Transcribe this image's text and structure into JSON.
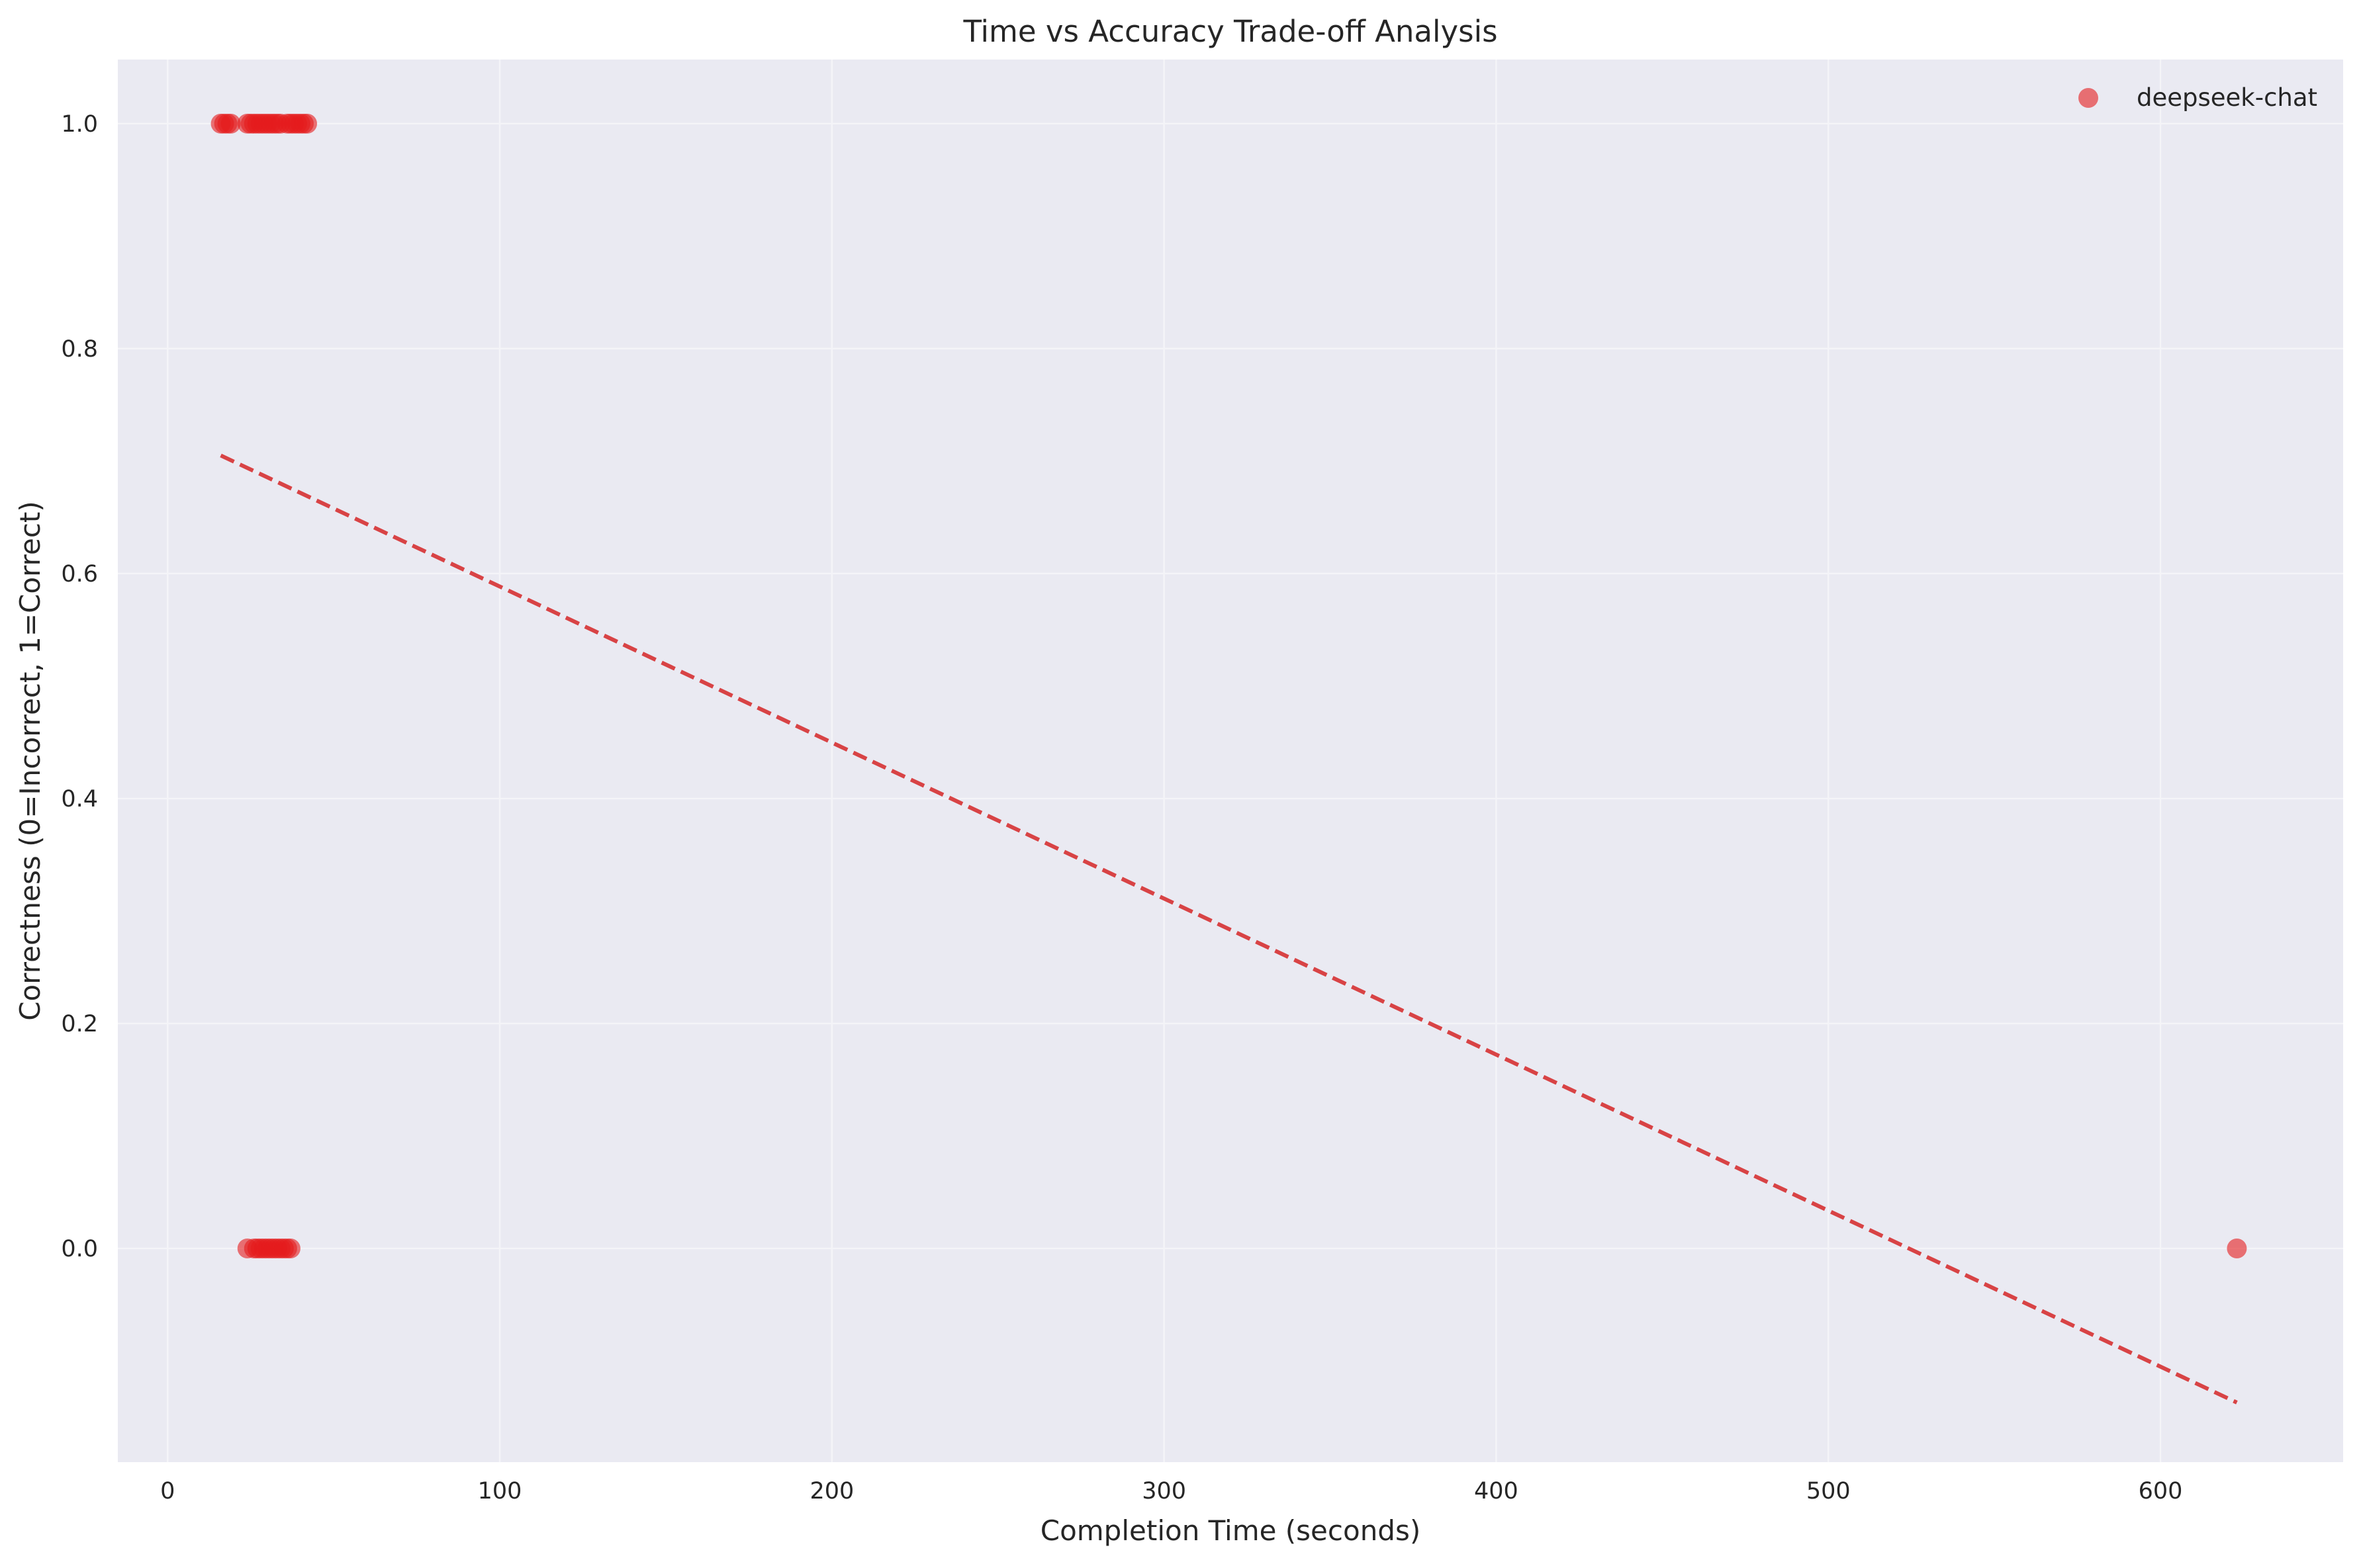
{
  "chart_data": {
    "type": "scatter",
    "title": "Time vs Accuracy Trade-off Analysis",
    "xlabel": "Completion Time (seconds)",
    "ylabel": "Correctness (0=Incorrect, 1=Correct)",
    "xlim": [
      -15,
      655
    ],
    "ylim": [
      -0.19,
      1.057
    ],
    "xticks": [
      {
        "value": 0,
        "label": "0"
      },
      {
        "value": 100,
        "label": "100"
      },
      {
        "value": 200,
        "label": "200"
      },
      {
        "value": 300,
        "label": "300"
      },
      {
        "value": 400,
        "label": "400"
      },
      {
        "value": 500,
        "label": "500"
      },
      {
        "value": 600,
        "label": "600"
      }
    ],
    "yticks": [
      {
        "value": 0.0,
        "label": "0.0"
      },
      {
        "value": 0.2,
        "label": "0.2"
      },
      {
        "value": 0.4,
        "label": "0.4"
      },
      {
        "value": 0.6,
        "label": "0.6"
      },
      {
        "value": 0.8,
        "label": "0.8"
      },
      {
        "value": 1.0,
        "label": "1.0"
      }
    ],
    "grid": true,
    "legend_position": "top-right",
    "background_color": "#eaeaf2",
    "grid_color": "#f4f4f8",
    "series": [
      {
        "name": "deepseek-chat",
        "color": "#e41a1c",
        "points": [
          {
            "x": 16,
            "y": 1
          },
          {
            "x": 17,
            "y": 1
          },
          {
            "x": 18,
            "y": 1
          },
          {
            "x": 19,
            "y": 1
          },
          {
            "x": 24,
            "y": 1
          },
          {
            "x": 25,
            "y": 1
          },
          {
            "x": 26,
            "y": 1
          },
          {
            "x": 27,
            "y": 1
          },
          {
            "x": 28,
            "y": 1
          },
          {
            "x": 29,
            "y": 1
          },
          {
            "x": 30,
            "y": 1
          },
          {
            "x": 31,
            "y": 1
          },
          {
            "x": 32,
            "y": 1
          },
          {
            "x": 33,
            "y": 1
          },
          {
            "x": 34,
            "y": 1
          },
          {
            "x": 36,
            "y": 1
          },
          {
            "x": 37,
            "y": 1
          },
          {
            "x": 38,
            "y": 1
          },
          {
            "x": 39,
            "y": 1
          },
          {
            "x": 40,
            "y": 1
          },
          {
            "x": 41,
            "y": 1
          },
          {
            "x": 42,
            "y": 1
          },
          {
            "x": 24,
            "y": 0
          },
          {
            "x": 26,
            "y": 0
          },
          {
            "x": 27,
            "y": 0
          },
          {
            "x": 28,
            "y": 0
          },
          {
            "x": 29,
            "y": 0
          },
          {
            "x": 30,
            "y": 0
          },
          {
            "x": 31,
            "y": 0
          },
          {
            "x": 32,
            "y": 0
          },
          {
            "x": 33,
            "y": 0
          },
          {
            "x": 34,
            "y": 0
          },
          {
            "x": 35,
            "y": 0
          },
          {
            "x": 36,
            "y": 0
          },
          {
            "x": 37,
            "y": 0
          },
          {
            "x": 623,
            "y": 0
          }
        ]
      }
    ],
    "trend_line": {
      "style": "dashed",
      "color": "#d62728",
      "x": [
        16,
        623
      ],
      "y": [
        0.705,
        -0.137
      ]
    }
  }
}
